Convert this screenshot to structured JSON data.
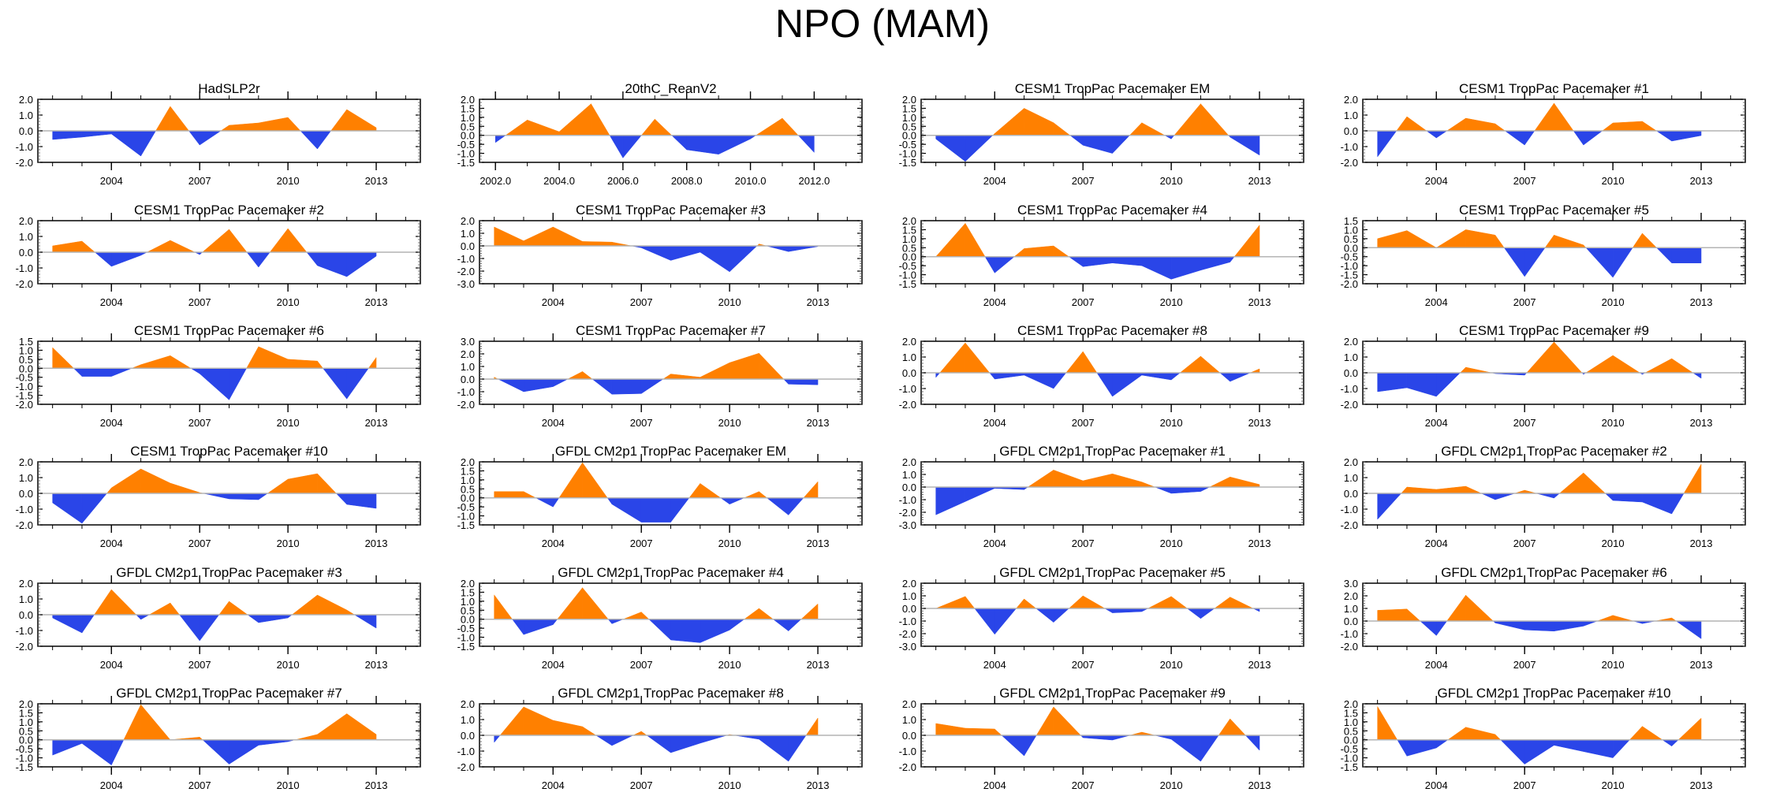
{
  "title": "NPO (MAM)",
  "chart_data": {
    "type": "area",
    "title": "NPO (MAM)",
    "layout": "6 rows x 4 columns",
    "positive_color": "#ff8000",
    "negative_color": "#2a45e8",
    "grid": false,
    "panels": [
      {
        "title": "HadSLP2r",
        "x": [
          2002,
          2003,
          2004,
          2005,
          2006,
          2007,
          2008,
          2009,
          2010,
          2011,
          2012,
          2013
        ],
        "values": [
          -0.55,
          -0.4,
          -0.2,
          -1.6,
          1.55,
          -0.9,
          0.35,
          0.5,
          0.85,
          -1.15,
          1.35,
          0.2
        ],
        "ylim": [
          -2,
          2
        ],
        "yticks": [
          "2.0",
          "1.0",
          "0.0",
          "-1.0",
          "-2.0"
        ],
        "xticks": [
          "2004",
          "2007",
          "2010",
          "2013"
        ]
      },
      {
        "title": "20thC_ReanV2",
        "x": [
          2002,
          2003,
          2004,
          2005,
          2006,
          2007,
          2008,
          2009,
          2010,
          2011,
          2012
        ],
        "values": [
          -0.4,
          0.85,
          0.2,
          1.75,
          -1.25,
          0.9,
          -0.8,
          -1.05,
          -0.2,
          0.95,
          -0.95
        ],
        "ylim": [
          -1.5,
          2
        ],
        "yticks": [
          "2.0",
          "1.5",
          "1.0",
          "0.5",
          "0.0",
          "-0.5",
          "-1.0",
          "-1.5"
        ],
        "xticks": [
          "2002.0",
          "2004.0",
          "2006.0",
          "2008.0",
          "2010.0",
          "2012.0"
        ],
        "xlim": [
          2001.5,
          2013.5
        ]
      },
      {
        "title": "CESM1 TropPac Pacemaker EM",
        "x": [
          2002,
          2003,
          2004,
          2005,
          2006,
          2007,
          2008,
          2009,
          2010,
          2011,
          2012,
          2013
        ],
        "values": [
          -0.2,
          -1.45,
          0.1,
          1.5,
          0.7,
          -0.55,
          -1.0,
          0.7,
          -0.2,
          1.75,
          -0.1,
          -1.1
        ],
        "ylim": [
          -1.5,
          2
        ],
        "yticks": [
          "2.0",
          "1.5",
          "1.0",
          "0.5",
          "0.0",
          "-0.5",
          "-1.0",
          "-1.5"
        ],
        "xticks": [
          "2004",
          "2007",
          "2010",
          "2013"
        ]
      },
      {
        "title": "CESM1 TropPac Pacemaker #1",
        "x": [
          2002,
          2003,
          2004,
          2005,
          2006,
          2007,
          2008,
          2009,
          2010,
          2011,
          2012,
          2013
        ],
        "values": [
          -1.65,
          0.9,
          -0.45,
          0.8,
          0.45,
          -0.9,
          1.75,
          -0.9,
          0.5,
          0.6,
          -0.65,
          -0.3
        ],
        "ylim": [
          -2,
          2
        ],
        "yticks": [
          "2.0",
          "1.0",
          "0.0",
          "-1.0",
          "-2.0"
        ],
        "xticks": [
          "2004",
          "2007",
          "2010",
          "2013"
        ]
      },
      {
        "title": "CESM1 TropPac Pacemaker #2",
        "x": [
          2002,
          2003,
          2004,
          2005,
          2006,
          2007,
          2008,
          2009,
          2010,
          2011,
          2012,
          2013
        ],
        "values": [
          0.4,
          0.7,
          -0.9,
          -0.2,
          0.75,
          -0.15,
          1.45,
          -0.95,
          1.5,
          -0.85,
          -1.55,
          -0.25
        ],
        "ylim": [
          -2,
          2
        ],
        "yticks": [
          "2.0",
          "1.0",
          "0.0",
          "-1.0",
          "-2.0"
        ],
        "xticks": [
          "2004",
          "2007",
          "2010",
          "2013"
        ]
      },
      {
        "title": "CESM1 TropPac Pacemaker #3",
        "x": [
          2002,
          2003,
          2004,
          2005,
          2006,
          2007,
          2008,
          2009,
          2010,
          2011,
          2012,
          2013
        ],
        "values": [
          1.5,
          0.4,
          1.5,
          0.35,
          0.3,
          -0.15,
          -1.15,
          -0.5,
          -2.05,
          0.15,
          -0.45,
          -0.05
        ],
        "ylim": [
          -3,
          2
        ],
        "yticks": [
          "2.0",
          "1.0",
          "0.0",
          "-1.0",
          "-2.0",
          "-3.0"
        ],
        "xticks": [
          "2004",
          "2007",
          "2010",
          "2013"
        ]
      },
      {
        "title": "CESM1 TropPac Pacemaker #4",
        "x": [
          2002,
          2003,
          2004,
          2005,
          2006,
          2007,
          2008,
          2009,
          2010,
          2011,
          2012,
          2013
        ],
        "values": [
          0.0,
          1.85,
          -0.9,
          0.45,
          0.6,
          -0.55,
          -0.35,
          -0.5,
          -1.25,
          -0.75,
          -0.3,
          1.75
        ],
        "ylim": [
          -1.5,
          2
        ],
        "yticks": [
          "2.0",
          "1.5",
          "1.0",
          "0.5",
          "0.0",
          "-0.5",
          "-1.0",
          "-1.5"
        ],
        "xticks": [
          "2004",
          "2007",
          "2010",
          "2013"
        ]
      },
      {
        "title": "CESM1 TropPac Pacemaker #5",
        "x": [
          2002,
          2003,
          2004,
          2005,
          2006,
          2007,
          2008,
          2009,
          2010,
          2011,
          2012,
          2013
        ],
        "values": [
          0.5,
          0.95,
          0.0,
          1.0,
          0.7,
          -1.6,
          0.7,
          0.15,
          -1.65,
          0.8,
          -0.85,
          -0.85
        ],
        "ylim": [
          -2,
          1.5
        ],
        "yticks": [
          "1.5",
          "1.0",
          "0.5",
          "0.0",
          "-0.5",
          "-1.0",
          "-1.5",
          "-2.0"
        ],
        "xticks": [
          "2004",
          "2007",
          "2010",
          "2013"
        ]
      },
      {
        "title": "CESM1 TropPac Pacemaker #6",
        "x": [
          2002,
          2003,
          2004,
          2005,
          2006,
          2007,
          2008,
          2009,
          2010,
          2011,
          2012,
          2013
        ],
        "values": [
          1.15,
          -0.45,
          -0.45,
          0.2,
          0.7,
          -0.3,
          -1.75,
          1.2,
          0.5,
          0.4,
          -1.7,
          0.6
        ],
        "ylim": [
          -2,
          1.5
        ],
        "yticks": [
          "1.5",
          "1.0",
          "0.5",
          "0.0",
          "-0.5",
          "-1.0",
          "-1.5",
          "-2.0"
        ],
        "xticks": [
          "2004",
          "2007",
          "2010",
          "2013"
        ]
      },
      {
        "title": "CESM1 TropPac Pacemaker #7",
        "x": [
          2002,
          2003,
          2004,
          2005,
          2006,
          2007,
          2008,
          2009,
          2010,
          2011,
          2012,
          2013
        ],
        "values": [
          0.15,
          -1.0,
          -0.6,
          0.6,
          -1.2,
          -1.15,
          0.4,
          0.15,
          1.3,
          2.05,
          -0.4,
          -0.45
        ],
        "ylim": [
          -2,
          3
        ],
        "yticks": [
          "3.0",
          "2.0",
          "1.0",
          "0.0",
          "-1.0",
          "-2.0"
        ],
        "xticks": [
          "2004",
          "2007",
          "2010",
          "2013"
        ]
      },
      {
        "title": "CESM1 TropPac Pacemaker #8",
        "x": [
          2002,
          2003,
          2004,
          2005,
          2006,
          2007,
          2008,
          2009,
          2010,
          2011,
          2012,
          2013
        ],
        "values": [
          -0.3,
          1.9,
          -0.4,
          -0.15,
          -1.0,
          1.35,
          -1.5,
          -0.15,
          -0.45,
          1.05,
          -0.55,
          0.25
        ],
        "ylim": [
          -2,
          2
        ],
        "yticks": [
          "2.0",
          "1.0",
          "0.0",
          "-1.0",
          "-2.0"
        ],
        "xticks": [
          "2004",
          "2007",
          "2010",
          "2013"
        ]
      },
      {
        "title": "CESM1 TropPac Pacemaker #9",
        "x": [
          2002,
          2003,
          2004,
          2005,
          2006,
          2007,
          2008,
          2009,
          2010,
          2011,
          2012,
          2013
        ],
        "values": [
          -1.2,
          -0.95,
          -1.5,
          0.35,
          -0.05,
          -0.15,
          1.95,
          -0.1,
          1.1,
          -0.1,
          0.9,
          -0.35
        ],
        "ylim": [
          -2,
          2
        ],
        "yticks": [
          "2.0",
          "1.0",
          "0.0",
          "-1.0",
          "-2.0"
        ],
        "xticks": [
          "2004",
          "2007",
          "2010",
          "2013"
        ]
      },
      {
        "title": "CESM1 TropPac Pacemaker #10",
        "x": [
          2002,
          2003,
          2004,
          2005,
          2006,
          2007,
          2008,
          2009,
          2010,
          2011,
          2012,
          2013
        ],
        "values": [
          -0.6,
          -1.9,
          0.35,
          1.55,
          0.65,
          0.05,
          -0.35,
          -0.4,
          0.9,
          1.25,
          -0.7,
          -0.95
        ],
        "ylim": [
          -2,
          2
        ],
        "yticks": [
          "2.0",
          "1.0",
          "0.0",
          "-1.0",
          "-2.0"
        ],
        "xticks": [
          "2004",
          "2007",
          "2010",
          "2013"
        ]
      },
      {
        "title": "GFDL CM2p1 TropPac Pacemaker EM",
        "x": [
          2002,
          2003,
          2004,
          2005,
          2006,
          2007,
          2008,
          2009,
          2010,
          2011,
          2012,
          2013
        ],
        "values": [
          0.35,
          0.35,
          -0.5,
          1.95,
          -0.35,
          -1.35,
          -1.35,
          0.8,
          -0.35,
          0.35,
          -0.95,
          0.9
        ],
        "ylim": [
          -1.5,
          2
        ],
        "yticks": [
          "2.0",
          "1.5",
          "1.0",
          "0.5",
          "0.0",
          "-0.5",
          "-1.0",
          "-1.5"
        ],
        "xticks": [
          "2004",
          "2007",
          "2010",
          "2013"
        ]
      },
      {
        "title": "GFDL CM2p1 TropPac Pacemaker #1",
        "x": [
          2002,
          2003,
          2004,
          2005,
          2006,
          2007,
          2008,
          2009,
          2010,
          2011,
          2012,
          2013
        ],
        "values": [
          -2.2,
          -1.15,
          -0.1,
          -0.2,
          1.35,
          0.5,
          1.05,
          0.4,
          -0.5,
          -0.35,
          0.8,
          0.2
        ],
        "ylim": [
          -3,
          2
        ],
        "yticks": [
          "2.0",
          "1.0",
          "0.0",
          "-1.0",
          "-2.0",
          "-3.0"
        ],
        "xticks": [
          "2004",
          "2007",
          "2010",
          "2013"
        ]
      },
      {
        "title": "GFDL CM2p1 TropPac Pacemaker #2",
        "x": [
          2002,
          2003,
          2004,
          2005,
          2006,
          2007,
          2008,
          2009,
          2010,
          2011,
          2012,
          2013
        ],
        "values": [
          -1.65,
          0.4,
          0.25,
          0.45,
          -0.4,
          0.2,
          -0.3,
          1.3,
          -0.45,
          -0.55,
          -1.3,
          1.85
        ],
        "ylim": [
          -2,
          2
        ],
        "yticks": [
          "2.0",
          "1.0",
          "0.0",
          "-1.0",
          "-2.0"
        ],
        "xticks": [
          "2004",
          "2007",
          "2010",
          "2013"
        ]
      },
      {
        "title": "GFDL CM2p1 TropPac Pacemaker #3",
        "x": [
          2002,
          2003,
          2004,
          2005,
          2006,
          2007,
          2008,
          2009,
          2010,
          2011,
          2012,
          2013
        ],
        "values": [
          -0.2,
          -1.15,
          1.6,
          -0.3,
          0.75,
          -1.65,
          0.85,
          -0.5,
          -0.2,
          1.25,
          0.3,
          -0.85
        ],
        "ylim": [
          -2,
          2
        ],
        "yticks": [
          "2.0",
          "1.0",
          "0.0",
          "-1.0",
          "-2.0"
        ],
        "xticks": [
          "2004",
          "2007",
          "2010",
          "2013"
        ]
      },
      {
        "title": "GFDL CM2p1 TropPac Pacemaker #4",
        "x": [
          2002,
          2003,
          2004,
          2005,
          2006,
          2007,
          2008,
          2009,
          2010,
          2011,
          2012,
          2013
        ],
        "values": [
          1.35,
          -0.85,
          -0.3,
          1.75,
          -0.25,
          0.4,
          -1.15,
          -1.3,
          -0.6,
          0.6,
          -0.65,
          0.85
        ],
        "ylim": [
          -1.5,
          2
        ],
        "yticks": [
          "2.0",
          "1.5",
          "1.0",
          "0.5",
          "0.0",
          "-0.5",
          "-1.0",
          "-1.5"
        ],
        "xticks": [
          "2004",
          "2007",
          "2010",
          "2013"
        ]
      },
      {
        "title": "GFDL CM2p1 TropPac Pacemaker #5",
        "x": [
          2002,
          2003,
          2004,
          2005,
          2006,
          2007,
          2008,
          2009,
          2010,
          2011,
          2012,
          2013
        ],
        "values": [
          0.0,
          0.95,
          -2.05,
          0.75,
          -1.1,
          1.0,
          -0.35,
          -0.25,
          0.95,
          -0.8,
          0.9,
          -0.25
        ],
        "ylim": [
          -3,
          2
        ],
        "yticks": [
          "2.0",
          "1.0",
          "0.0",
          "-1.0",
          "-2.0",
          "-3.0"
        ],
        "xticks": [
          "2004",
          "2007",
          "2010",
          "2013"
        ]
      },
      {
        "title": "GFDL CM2p1 TropPac Pacemaker #6",
        "x": [
          2002,
          2003,
          2004,
          2005,
          2006,
          2007,
          2008,
          2009,
          2010,
          2011,
          2012,
          2013
        ],
        "values": [
          0.85,
          0.95,
          -1.15,
          2.05,
          -0.15,
          -0.7,
          -0.8,
          -0.4,
          0.45,
          -0.2,
          0.25,
          -1.4
        ],
        "ylim": [
          -2,
          3
        ],
        "yticks": [
          "3.0",
          "2.0",
          "1.0",
          "0.0",
          "-1.0",
          "-2.0"
        ],
        "xticks": [
          "2004",
          "2007",
          "2010",
          "2013"
        ]
      },
      {
        "title": "GFDL CM2p1 TropPac Pacemaker #7",
        "x": [
          2002,
          2003,
          2004,
          2005,
          2006,
          2007,
          2008,
          2009,
          2010,
          2011,
          2012,
          2013
        ],
        "values": [
          -0.85,
          -0.2,
          -1.4,
          1.95,
          0.0,
          0.15,
          -1.35,
          -0.3,
          -0.1,
          0.3,
          1.45,
          0.3
        ],
        "ylim": [
          -1.5,
          2
        ],
        "yticks": [
          "2.0",
          "1.5",
          "1.0",
          "0.5",
          "0.0",
          "-0.5",
          "-1.0",
          "-1.5"
        ],
        "xticks": [
          "2004",
          "2007",
          "2010",
          "2013"
        ]
      },
      {
        "title": "GFDL CM2p1 TropPac Pacemaker #8",
        "x": [
          2002,
          2003,
          2004,
          2005,
          2006,
          2007,
          2008,
          2009,
          2010,
          2011,
          2012,
          2013
        ],
        "values": [
          -0.45,
          1.8,
          0.95,
          0.55,
          -0.65,
          0.25,
          -1.1,
          -0.5,
          0.05,
          -0.25,
          -1.65,
          1.1
        ],
        "ylim": [
          -2,
          2
        ],
        "yticks": [
          "2.0",
          "1.0",
          "0.0",
          "-1.0",
          "-2.0"
        ],
        "xticks": [
          "2004",
          "2007",
          "2010",
          "2013"
        ]
      },
      {
        "title": "GFDL CM2p1 TropPac Pacemaker #9",
        "x": [
          2002,
          2003,
          2004,
          2005,
          2006,
          2007,
          2008,
          2009,
          2010,
          2011,
          2012,
          2013
        ],
        "values": [
          0.75,
          0.45,
          0.4,
          -1.3,
          1.8,
          -0.15,
          -0.3,
          0.2,
          -0.25,
          -1.65,
          1.05,
          -0.95
        ],
        "ylim": [
          -2,
          2
        ],
        "yticks": [
          "2.0",
          "1.0",
          "0.0",
          "-1.0",
          "-2.0"
        ],
        "xticks": [
          "2004",
          "2007",
          "2010",
          "2013"
        ]
      },
      {
        "title": "GFDL CM2p1 TropPac Pacemaker #10",
        "x": [
          2002,
          2003,
          2004,
          2005,
          2006,
          2007,
          2008,
          2009,
          2010,
          2011,
          2012,
          2013
        ],
        "values": [
          1.85,
          -0.9,
          -0.45,
          0.7,
          0.3,
          -1.35,
          -0.3,
          -0.65,
          -1.0,
          0.75,
          -0.35,
          1.2
        ],
        "ylim": [
          -1.5,
          2
        ],
        "yticks": [
          "2.0",
          "1.5",
          "1.0",
          "0.5",
          "0.0",
          "-0.5",
          "-1.0",
          "-1.5"
        ],
        "xticks": [
          "2004",
          "2007",
          "2010",
          "2013"
        ]
      }
    ]
  }
}
